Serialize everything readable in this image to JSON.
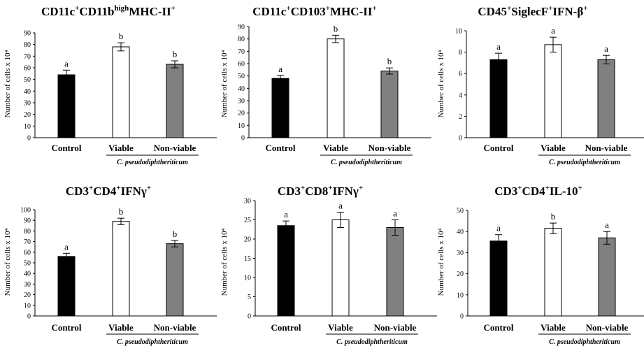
{
  "figure": {
    "y_label": "Number of cells x 10⁴",
    "group_label": "C. pseudodiphtheriticum",
    "categories": [
      "Control",
      "Viable",
      "Non-viable"
    ],
    "bar_colors": [
      "#000000",
      "#ffffff",
      "#808080"
    ]
  },
  "chart_data": [
    {
      "type": "bar",
      "title": "CD11c⁺CD11bʰⁱᵍʰMHC-II⁺",
      "title_parts": [
        {
          "t": "CD11c"
        },
        {
          "t": "+",
          "sup": true
        },
        {
          "t": "CD11b"
        },
        {
          "t": "high",
          "sup": true
        },
        {
          "t": "MHC-II"
        },
        {
          "t": "+",
          "sup": true
        }
      ],
      "categories": [
        "Control",
        "Viable",
        "Non-viable"
      ],
      "values": [
        54,
        78,
        63
      ],
      "errors": [
        4,
        3.5,
        3
      ],
      "significance": [
        "a",
        "b",
        "b"
      ],
      "ylim": [
        0,
        90
      ],
      "ytick_step": 10,
      "ylabel": "Number of cells x 10⁴",
      "xlabel": ""
    },
    {
      "type": "bar",
      "title": "CD11c⁺CD103⁺MHC-II⁺",
      "title_parts": [
        {
          "t": "CD11c"
        },
        {
          "t": "+",
          "sup": true
        },
        {
          "t": "CD103"
        },
        {
          "t": "+",
          "sup": true
        },
        {
          "t": "MHC-II"
        },
        {
          "t": "+",
          "sup": true
        }
      ],
      "categories": [
        "Control",
        "Viable",
        "Non-viable"
      ],
      "values": [
        48,
        80,
        54
      ],
      "errors": [
        2.5,
        3,
        2.5
      ],
      "significance": [
        "a",
        "b",
        "b"
      ],
      "ylim": [
        0,
        90
      ],
      "ytick_step": 10,
      "ylabel": "Number of cells x 10⁴",
      "xlabel": ""
    },
    {
      "type": "bar",
      "title": "CD45⁺SiglecF⁺IFN-β⁺",
      "title_parts": [
        {
          "t": "CD45"
        },
        {
          "t": "+",
          "sup": true
        },
        {
          "t": "SiglecF"
        },
        {
          "t": "+",
          "sup": true
        },
        {
          "t": "IFN-β"
        },
        {
          "t": "+",
          "sup": true
        }
      ],
      "categories": [
        "Control",
        "Viable",
        "Non-viable"
      ],
      "values": [
        7.3,
        8.7,
        7.3
      ],
      "errors": [
        0.6,
        0.7,
        0.4
      ],
      "significance": [
        "a",
        "a",
        "a"
      ],
      "ylim": [
        0,
        10
      ],
      "ytick_step": 2,
      "ylabel": "Number of cells x 10⁴",
      "xlabel": ""
    },
    {
      "type": "bar",
      "title": "CD3⁺CD4⁺IFNγ⁺",
      "title_parts": [
        {
          "t": "CD3"
        },
        {
          "t": "+",
          "sup": true
        },
        {
          "t": "CD4"
        },
        {
          "t": "+",
          "sup": true
        },
        {
          "t": "IFNγ"
        },
        {
          "t": "+",
          "sup": true
        }
      ],
      "categories": [
        "Control",
        "Viable",
        "Non-viable"
      ],
      "values": [
        56,
        89,
        68
      ],
      "errors": [
        3,
        3,
        3
      ],
      "significance": [
        "a",
        "b",
        "b"
      ],
      "ylim": [
        0,
        100
      ],
      "ytick_step": 10,
      "ylabel": "Number of cells x 10⁴",
      "xlabel": ""
    },
    {
      "type": "bar",
      "title": "CD3⁺CD8⁺IFNγ⁺",
      "title_parts": [
        {
          "t": "CD3"
        },
        {
          "t": "+",
          "sup": true
        },
        {
          "t": "CD8"
        },
        {
          "t": "+",
          "sup": true
        },
        {
          "t": "IFNγ"
        },
        {
          "t": "+",
          "sup": true
        }
      ],
      "categories": [
        "Control",
        "Viable",
        "Non-viable"
      ],
      "values": [
        23.5,
        25,
        23
      ],
      "errors": [
        1.2,
        2,
        2
      ],
      "significance": [
        "a",
        "a",
        "a"
      ],
      "ylim": [
        0,
        30
      ],
      "ytick_step": 5,
      "ylabel": "Number of cells x 10⁴",
      "xlabel": ""
    },
    {
      "type": "bar",
      "title": "CD3⁺CD4⁺IL-10⁺",
      "title_parts": [
        {
          "t": "CD3"
        },
        {
          "t": "+",
          "sup": true
        },
        {
          "t": "CD4"
        },
        {
          "t": "+",
          "sup": true
        },
        {
          "t": "IL-10"
        },
        {
          "t": "+",
          "sup": true
        }
      ],
      "categories": [
        "Control",
        "Viable",
        "Non-viable"
      ],
      "values": [
        35.5,
        41.5,
        37
      ],
      "errors": [
        3,
        2.5,
        3
      ],
      "significance": [
        "a",
        "b",
        "a"
      ],
      "ylim": [
        0,
        50
      ],
      "ytick_step": 10,
      "ylabel": "Number of cells x 10⁴",
      "xlabel": ""
    }
  ]
}
